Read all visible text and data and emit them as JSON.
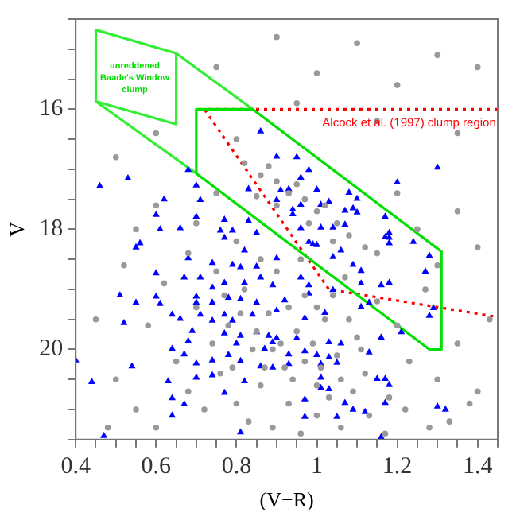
{
  "chart_data": {
    "type": "scatter",
    "xlabel": "(V−R)",
    "ylabel": "V",
    "xlim": [
      0.4,
      1.45
    ],
    "ylim": [
      21.5,
      14.5
    ],
    "xticks": [
      0.4,
      {
        "value": 0.45,
        "label": null
      },
      {
        "value": 0.5,
        "label": null
      },
      {
        "value": 0.55,
        "label": null
      },
      0.6,
      {
        "value": 0.65,
        "label": null
      },
      {
        "value": 0.7,
        "label": null
      },
      {
        "value": 0.75,
        "label": null
      },
      0.8,
      {
        "value": 0.85,
        "label": null
      },
      {
        "value": 0.9,
        "label": null
      },
      {
        "value": 0.95,
        "label": null
      },
      1,
      {
        "value": 1.05,
        "label": null
      },
      {
        "value": 1.1,
        "label": null
      },
      {
        "value": 1.15,
        "label": null
      },
      1.2,
      {
        "value": 1.25,
        "label": null
      },
      {
        "value": 1.3,
        "label": null
      },
      {
        "value": 1.35,
        "label": null
      },
      1.4,
      {
        "value": 1.45,
        "label": null
      }
    ],
    "yticks": [
      {
        "value": 14.5,
        "label": null
      },
      {
        "value": 15,
        "label": null
      },
      {
        "value": 15.5,
        "label": null
      },
      16,
      {
        "value": 16.5,
        "label": null
      },
      {
        "value": 17,
        "label": null
      },
      {
        "value": 17.5,
        "label": null
      },
      18,
      {
        "value": 18.5,
        "label": null
      },
      {
        "value": 19,
        "label": null
      },
      {
        "value": 19.5,
        "label": null
      },
      20,
      {
        "value": 20.5,
        "label": null
      },
      {
        "value": 21,
        "label": null
      },
      {
        "value": 21.5,
        "label": null
      }
    ],
    "annotations": [
      "unreddened\nBaade's Window\nclump",
      "Alcock et al. (1997) clump region"
    ],
    "series": [
      {
        "type": "scatter",
        "marker": "circle",
        "color": "#999999",
        "x": [
          0.9,
          1.1,
          1.3,
          0.75,
          1.0,
          1.2,
          1.4,
          0.6,
          0.95,
          1.15,
          1.35,
          0.5,
          0.8,
          0.82,
          0.86,
          0.9,
          0.88,
          0.93,
          0.97,
          0.95,
          1.0,
          1.02,
          1.05,
          1.08,
          0.9,
          1.12,
          1.15,
          0.98,
          1.04,
          0.85,
          0.6,
          0.7,
          0.75,
          0.8,
          0.68,
          1.2,
          1.25,
          1.35,
          1.4,
          0.55,
          1.3,
          0.62,
          0.7,
          0.75,
          0.78,
          0.82,
          0.84,
          0.88,
          0.9,
          0.92,
          0.95,
          0.97,
          1.0,
          1.02,
          1.05,
          1.07,
          1.1,
          1.12,
          1.15,
          1.18,
          1.2,
          1.23,
          1.27,
          1.3,
          1.35,
          1.4,
          1.43,
          0.58,
          0.65,
          0.68,
          0.72,
          0.76,
          0.8,
          0.83,
          0.86,
          0.89,
          0.93,
          0.96,
          1.0,
          1.03,
          1.06,
          1.09,
          1.13,
          1.17,
          1.22,
          1.28,
          1.33,
          1.38,
          0.5,
          0.55,
          0.45,
          0.52,
          0.48,
          0.6,
          0.74,
          0.79,
          0.85,
          0.87,
          0.91,
          0.94,
          0.99,
          1.01,
          1.04,
          1.08,
          1.11,
          0.96,
          0.86,
          0.77,
          0.81,
          0.93,
          1.0,
          1.06,
          0.89,
          0.97
        ],
        "values": [
          14.8,
          14.9,
          15.1,
          15.3,
          15.4,
          15.6,
          15.3,
          16.4,
          15.9,
          16.2,
          16.4,
          16.8,
          16.5,
          16.9,
          17.1,
          17.2,
          16.95,
          17.4,
          17.5,
          17.25,
          17.7,
          17.6,
          17.9,
          18.1,
          17.6,
          18.3,
          18.4,
          17.9,
          18.2,
          17.45,
          17.6,
          17.9,
          17.4,
          18.2,
          18.4,
          17.4,
          18.0,
          17.7,
          18.3,
          18.0,
          18.6,
          18.9,
          19.3,
          18.7,
          19.6,
          19.0,
          20.0,
          19.4,
          18.7,
          20.3,
          19.7,
          19.1,
          20.6,
          19.5,
          20.1,
          18.8,
          19.8,
          20.4,
          19.2,
          20.8,
          19.6,
          20.2,
          19.0,
          20.5,
          19.9,
          20.7,
          19.5,
          19.6,
          20.2,
          20.7,
          21.0,
          20.4,
          20.9,
          21.2,
          20.6,
          21.3,
          20.9,
          21.4,
          21.1,
          20.8,
          21.3,
          20.7,
          21.1,
          21.4,
          21.0,
          21.3,
          21.2,
          20.9,
          20.5,
          21.0,
          19.5,
          18.6,
          21.3,
          21.3,
          19.9,
          20.3,
          19.7,
          20.3,
          19.9,
          20.5,
          19.9,
          20.3,
          19.1,
          19.5,
          20.0,
          18.5,
          18.5,
          19.1,
          19.4,
          19.3,
          19.3,
          20.5,
          20.0,
          20.2
        ]
      },
      {
        "type": "scatter",
        "marker": "triangle",
        "color": "#0000ff",
        "x": [
          0.86,
          0.9,
          0.95,
          0.68,
          0.98,
          0.96,
          1.3,
          1.2,
          0.46,
          0.53,
          0.7,
          0.83,
          0.91,
          0.93,
          1.0,
          1.08,
          0.62,
          0.71,
          0.9,
          0.96,
          1.01,
          1.03,
          1.1,
          1.07,
          1.09,
          1.1,
          0.94,
          0.94,
          0.6,
          0.7,
          0.77,
          0.83,
          1.07,
          1.17,
          0.61,
          0.66,
          0.76,
          0.79,
          0.85,
          0.96,
          1.01,
          1.04,
          1.18,
          1.17,
          1.18,
          1.18,
          1.24,
          0.56,
          0.55,
          0.77,
          0.98,
          1.0,
          1.06,
          0.82,
          0.99,
          1.04,
          1.09,
          1.11,
          1.28,
          1.27,
          0.6,
          0.68,
          0.74,
          0.79,
          0.81,
          0.85,
          0.9,
          0.67,
          0.71,
          0.77,
          0.82,
          0.86,
          0.89,
          0.96,
          0.98,
          0.51,
          0.55,
          0.6,
          0.61,
          0.7,
          0.74,
          0.78,
          0.81,
          0.7,
          0.74,
          0.85,
          0.92,
          0.98,
          1.04,
          1.11,
          1.16,
          1.18,
          1.11,
          1.13,
          1.28,
          1.29,
          0.64,
          0.66,
          0.71,
          0.74,
          0.77,
          0.79,
          0.84,
          0.9,
          0.97,
          1.02,
          0.52,
          0.69,
          0.77,
          0.81,
          0.85,
          0.88,
          0.9,
          0.95,
          1.03,
          1.06,
          1.16,
          1.21,
          0.64,
          0.68,
          0.8,
          0.87,
          0.89,
          0.93,
          0.97,
          1.0,
          1.03,
          0.4,
          0.54,
          0.67,
          0.7,
          0.74,
          0.78,
          0.81,
          0.86,
          0.89,
          0.93,
          1.01,
          1.05,
          1.13,
          0.7,
          0.74,
          0.44,
          0.63,
          0.82,
          1.01,
          1.15,
          1.17,
          1.01,
          1.03,
          1.18,
          0.77,
          0.97,
          0.64,
          0.67,
          1.07,
          1.17,
          1.09,
          1.12,
          1.3,
          1.32,
          0.64,
          0.97,
          1.05,
          0.81,
          0.47,
          1.16
        ],
        "values": [
          16.37,
          16.79,
          16.8,
          17.01,
          17.01,
          17.14,
          16.97,
          17.22,
          17.28,
          17.15,
          17.27,
          17.33,
          17.35,
          17.33,
          17.34,
          17.39,
          17.5,
          17.51,
          17.51,
          17.59,
          17.59,
          17.54,
          17.49,
          17.69,
          17.65,
          17.72,
          17.67,
          17.75,
          17.76,
          17.79,
          17.84,
          17.86,
          17.92,
          17.79,
          18.0,
          17.98,
          18.02,
          18.02,
          18.06,
          17.98,
          17.97,
          17.97,
          18.06,
          18.13,
          18.23,
          18.14,
          18.21,
          18.23,
          18.3,
          18.14,
          18.21,
          18.26,
          18.35,
          18.35,
          18.25,
          18.46,
          18.59,
          18.69,
          18.44,
          18.7,
          18.73,
          18.48,
          18.56,
          18.59,
          18.63,
          18.62,
          18.48,
          18.8,
          18.8,
          18.89,
          18.89,
          18.8,
          18.93,
          18.8,
          18.93,
          19.1,
          19.22,
          19.12,
          19.24,
          19.12,
          18.97,
          19.14,
          19.16,
          19.22,
          19.22,
          19.22,
          19.18,
          19.07,
          19.01,
          18.9,
          18.93,
          18.89,
          19.29,
          19.22,
          19.44,
          19.31,
          19.42,
          19.49,
          19.42,
          19.52,
          19.42,
          19.52,
          19.42,
          19.35,
          19.48,
          19.39,
          19.56,
          19.69,
          19.73,
          19.77,
          19.71,
          19.77,
          19.81,
          19.81,
          19.88,
          19.9,
          19.8,
          19.71,
          19.99,
          19.86,
          19.9,
          19.99,
          19.88,
          20.08,
          20.03,
          20.09,
          20.13,
          20.18,
          20.28,
          20.08,
          20.23,
          20.18,
          20.09,
          20.19,
          20.28,
          20.3,
          20.24,
          20.24,
          20.22,
          20.05,
          20.47,
          20.43,
          20.54,
          20.53,
          20.53,
          20.47,
          20.49,
          20.49,
          20.64,
          20.66,
          20.59,
          20.72,
          20.83,
          20.81,
          20.91,
          20.89,
          20.89,
          21.0,
          21.04,
          20.95,
          21.0,
          21.1,
          21.12,
          21.12,
          21.38,
          21.44,
          21.46
        ]
      },
      {
        "type": "line",
        "marker": "none",
        "line_style": "solid",
        "color": "#00e000",
        "x": [
          0.7,
          0.7,
          0.84,
          1.31,
          1.31,
          1.28
        ],
        "values": [
          17.07,
          16,
          16,
          18.37,
          20,
          20
        ]
      },
      {
        "type": "line",
        "marker": "none",
        "line_style": "solid",
        "color": "#00e000",
        "x": [
          1.28,
          0.7
        ],
        "values": [
          20,
          17.07
        ]
      },
      {
        "type": "line",
        "marker": "none",
        "line_style": "solid",
        "color": "#33ee33",
        "x": [
          0.84,
          0.65,
          0.45,
          0.45,
          0.65,
          0.65
        ],
        "values": [
          16,
          15.07,
          14.68,
          15.87,
          16.25,
          15.07
        ]
      },
      {
        "type": "line",
        "marker": "none",
        "line_style": "solid",
        "color": "#33ee33",
        "x": [
          0.45,
          0.7
        ],
        "values": [
          15.87,
          17.07
        ]
      },
      {
        "type": "line",
        "marker": "none",
        "line_style": "dotted",
        "color": "#ff0000",
        "x": [
          1.45,
          0.72,
          1.03,
          1.45
        ],
        "values": [
          16,
          16,
          19.0,
          19.46
        ]
      }
    ]
  }
}
